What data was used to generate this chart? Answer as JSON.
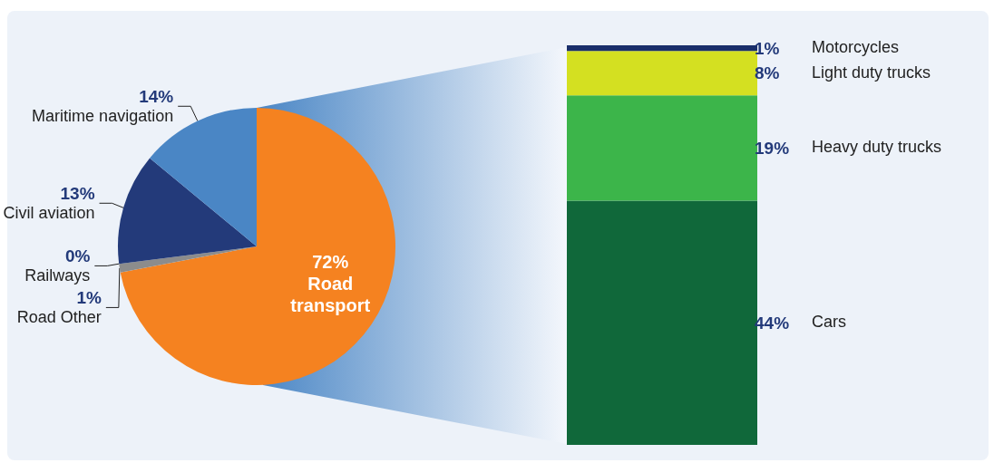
{
  "chart_data": [
    {
      "type": "pie",
      "categories": [
        "Road transport",
        "Road Other",
        "Railways",
        "Civil aviation",
        "Maritime navigation"
      ],
      "values": [
        72,
        1,
        0,
        13,
        14
      ],
      "colors": [
        "#f58220",
        "#8c8c8c",
        "#9aa3ad",
        "#233a7a",
        "#4a86c5"
      ],
      "value_labels": [
        "72%",
        "1%",
        "0%",
        "13%",
        "14%"
      ]
    },
    {
      "type": "bar",
      "stacked": true,
      "categories": [
        null
      ],
      "series": [
        {
          "name": "Cars",
          "color": "#10683a",
          "values": [
            44
          ],
          "value_labels": [
            "44%"
          ]
        },
        {
          "name": "Heavy duty trucks",
          "color": "#3cb54a",
          "values": [
            19
          ],
          "value_labels": [
            "19%"
          ]
        },
        {
          "name": "Light duty trucks",
          "color": "#d4e021",
          "values": [
            8
          ],
          "value_labels": [
            "8%"
          ]
        },
        {
          "name": "Motorcycles",
          "color": "#1a2f6b",
          "values": [
            1
          ],
          "value_labels": [
            "1%"
          ]
        }
      ]
    }
  ]
}
